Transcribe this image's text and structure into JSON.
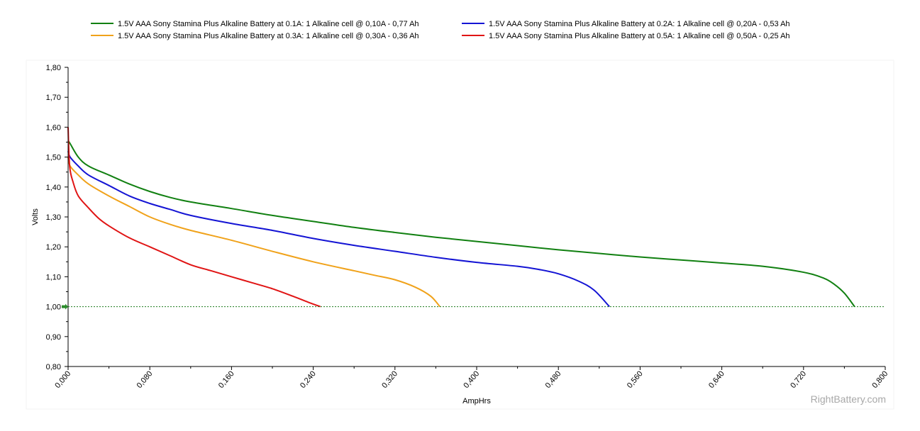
{
  "chart_data": {
    "type": "line",
    "xlabel": "AmpHrs",
    "ylabel": "Volts",
    "xlim": [
      0,
      0.8
    ],
    "ylim": [
      0.8,
      1.8
    ],
    "x_ticks": [
      "0,000",
      "0,080",
      "0,160",
      "0,240",
      "0,320",
      "0,400",
      "0,480",
      "0,560",
      "0,640",
      "0,720",
      "0,800"
    ],
    "y_ticks": [
      "0,80",
      "0,90",
      "1,00",
      "1,10",
      "1,20",
      "1,30",
      "1,40",
      "1,50",
      "1,60",
      "1,70",
      "1,80"
    ],
    "cutoff_voltage": 1.0,
    "legend_position": "top",
    "watermark": "RightBattery.com",
    "series": [
      {
        "name": "1.5V AAA Sony Stamina Plus Alkaline Battery at 0.1A: 1 Alkaline cell @ 0,10A - 0,77 Ah",
        "color": "#118011",
        "x": [
          0,
          0.002,
          0.01,
          0.02,
          0.04,
          0.06,
          0.08,
          0.1,
          0.12,
          0.16,
          0.2,
          0.24,
          0.28,
          0.32,
          0.36,
          0.4,
          0.44,
          0.48,
          0.52,
          0.56,
          0.6,
          0.64,
          0.68,
          0.72,
          0.74,
          0.75,
          0.76,
          0.77
        ],
        "values": [
          1.555,
          1.545,
          1.5,
          1.47,
          1.44,
          1.41,
          1.385,
          1.365,
          1.35,
          1.328,
          1.305,
          1.285,
          1.265,
          1.248,
          1.232,
          1.218,
          1.204,
          1.19,
          1.178,
          1.166,
          1.156,
          1.146,
          1.135,
          1.115,
          1.095,
          1.075,
          1.045,
          1.0
        ]
      },
      {
        "name": "1.5V AAA Sony Stamina Plus Alkaline Battery at 0.2A: 1 Alkaline cell @ 0,20A - 0,53 Ah",
        "color": "#1414d4",
        "x": [
          0,
          0.002,
          0.01,
          0.02,
          0.04,
          0.06,
          0.08,
          0.1,
          0.12,
          0.16,
          0.2,
          0.24,
          0.28,
          0.32,
          0.36,
          0.4,
          0.44,
          0.46,
          0.48,
          0.5,
          0.515,
          0.53
        ],
        "values": [
          1.52,
          1.5,
          1.47,
          1.44,
          1.405,
          1.37,
          1.345,
          1.325,
          1.305,
          1.278,
          1.255,
          1.228,
          1.205,
          1.185,
          1.165,
          1.148,
          1.135,
          1.125,
          1.11,
          1.085,
          1.055,
          1.0
        ]
      },
      {
        "name": "1.5V AAA Sony Stamina Plus Alkaline Battery at 0.3A: 1 Alkaline cell @ 0,30A - 0,36 Ah",
        "color": "#f0a21a",
        "x": [
          0,
          0.002,
          0.01,
          0.02,
          0.04,
          0.06,
          0.08,
          0.1,
          0.12,
          0.16,
          0.2,
          0.24,
          0.28,
          0.3,
          0.32,
          0.34,
          0.355,
          0.364
        ],
        "values": [
          1.5,
          1.47,
          1.44,
          1.41,
          1.37,
          1.335,
          1.3,
          1.275,
          1.255,
          1.222,
          1.185,
          1.15,
          1.12,
          1.105,
          1.09,
          1.065,
          1.035,
          1.0
        ]
      },
      {
        "name": "1.5V AAA Sony Stamina Plus Alkaline Battery at 0.5A: 1 Alkaline cell @ 0,50A - 0,25 Ah",
        "color": "#e01414",
        "x": [
          0,
          0.0015,
          0.005,
          0.01,
          0.02,
          0.03,
          0.04,
          0.06,
          0.08,
          0.1,
          0.12,
          0.14,
          0.16,
          0.18,
          0.2,
          0.22,
          0.235,
          0.247
        ],
        "values": [
          1.6,
          1.47,
          1.415,
          1.37,
          1.33,
          1.295,
          1.27,
          1.23,
          1.2,
          1.17,
          1.14,
          1.12,
          1.1,
          1.08,
          1.06,
          1.035,
          1.015,
          1.0
        ]
      }
    ]
  }
}
